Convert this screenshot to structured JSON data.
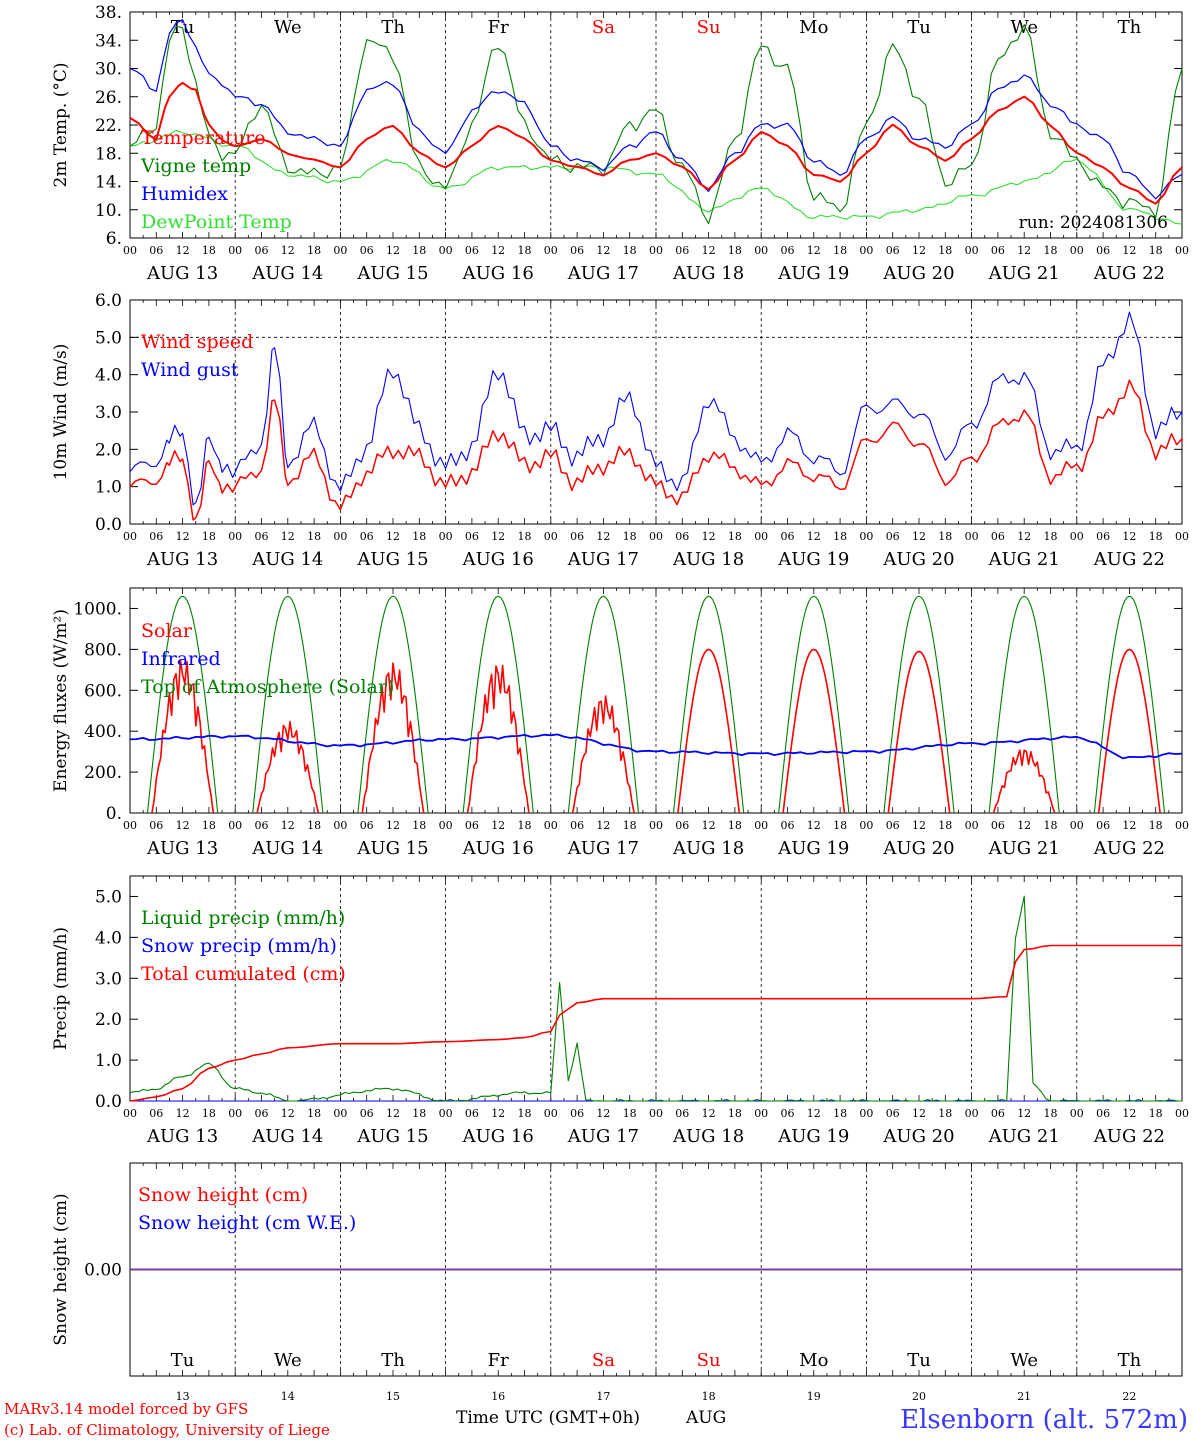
{
  "chart_data": [
    {
      "type": "line",
      "ylabel": "2m Temp. (°C)",
      "ylim": [
        6,
        38
      ],
      "ytick_labels": [
        "6.",
        "10.",
        "14.",
        "18.",
        "22.",
        "26.",
        "30.",
        "34.",
        "38."
      ],
      "run_label": "run: 2024081306",
      "x_unit": "hours since AUG 13 00 UTC",
      "series": [
        {
          "name": "Temperature",
          "color": "#ff0000",
          "x": [
            0,
            6,
            9,
            12,
            15,
            18,
            21,
            24,
            30,
            36,
            42,
            48,
            54,
            60,
            66,
            72,
            78,
            84,
            90,
            96,
            102,
            108,
            114,
            120,
            126,
            132,
            138,
            144,
            150,
            156,
            162,
            168,
            174,
            180,
            186,
            192,
            198,
            204,
            210,
            216,
            222,
            228,
            234,
            240
          ],
          "values": [
            23,
            20,
            26,
            28,
            27,
            22,
            20,
            19,
            20,
            18,
            17,
            16,
            20,
            22,
            18,
            16,
            19,
            22,
            20,
            17,
            16,
            15,
            17,
            18,
            16,
            13,
            17,
            21,
            19,
            15,
            14,
            18,
            22,
            19,
            17,
            20,
            24,
            26,
            22,
            18,
            16,
            13,
            11,
            16
          ]
        },
        {
          "name": "Vigne temp",
          "color": "#008000",
          "x": [
            0,
            6,
            9,
            12,
            15,
            18,
            21,
            24,
            30,
            36,
            42,
            48,
            54,
            60,
            66,
            72,
            78,
            84,
            90,
            96,
            102,
            108,
            114,
            120,
            126,
            132,
            138,
            144,
            150,
            156,
            162,
            168,
            174,
            180,
            186,
            192,
            198,
            204,
            210,
            216,
            222,
            228,
            234,
            240
          ],
          "values": [
            19,
            22,
            34,
            36,
            28,
            20,
            18,
            18,
            25,
            16,
            15,
            16,
            34,
            32,
            16,
            13,
            22,
            34,
            22,
            17,
            16,
            16,
            22,
            24,
            16,
            9,
            20,
            33,
            30,
            12,
            10,
            22,
            33,
            26,
            14,
            16,
            31,
            36,
            21,
            17,
            13,
            11,
            10,
            30
          ]
        },
        {
          "name": "Humidex",
          "color": "#0000ff",
          "x": [
            0,
            6,
            9,
            12,
            15,
            18,
            21,
            24,
            30,
            36,
            42,
            48,
            54,
            60,
            66,
            72,
            78,
            84,
            90,
            96,
            102,
            108,
            114,
            120,
            126,
            132,
            138,
            144,
            150,
            156,
            162,
            168,
            174,
            180,
            186,
            192,
            198,
            204,
            210,
            216,
            222,
            228,
            234,
            240
          ],
          "values": [
            30,
            27,
            35,
            37,
            33,
            29,
            28,
            26,
            25,
            21,
            20,
            19,
            27,
            28,
            21,
            18,
            24,
            27,
            25,
            19,
            17,
            16,
            19,
            21,
            17,
            13,
            18,
            22,
            22,
            17,
            15,
            20,
            23,
            20,
            19,
            22,
            27,
            29,
            25,
            22,
            20,
            15,
            12,
            15
          ]
        },
        {
          "name": "DewPoint Temp",
          "color": "#33dd33",
          "x": [
            0,
            12,
            24,
            36,
            48,
            60,
            72,
            84,
            96,
            108,
            120,
            132,
            144,
            156,
            168,
            180,
            192,
            204,
            216,
            228,
            240
          ],
          "values": [
            19,
            21,
            19,
            15,
            14,
            17,
            13,
            16,
            16,
            16,
            15,
            10,
            13,
            9,
            9,
            10,
            12,
            14,
            17,
            10,
            8
          ]
        }
      ]
    },
    {
      "type": "line",
      "ylabel": "10m Wind (m/s)",
      "ylim": [
        0,
        6
      ],
      "ytick_labels": [
        "0.0",
        "1.0",
        "2.0",
        "3.0",
        "4.0",
        "5.0",
        "6.0"
      ],
      "series": [
        {
          "name": "Wind speed",
          "color": "#ff0000",
          "x": [
            0,
            6,
            9,
            12,
            15,
            18,
            21,
            24,
            30,
            33,
            36,
            42,
            48,
            54,
            60,
            66,
            72,
            78,
            84,
            90,
            96,
            102,
            108,
            114,
            120,
            126,
            132,
            138,
            144,
            150,
            156,
            162,
            168,
            174,
            180,
            186,
            192,
            198,
            204,
            210,
            216,
            222,
            228,
            234,
            240
          ],
          "values": [
            1.0,
            1.2,
            1.6,
            1.8,
            0.1,
            1.5,
            1.1,
            1.0,
            1.5,
            3.3,
            1.2,
            1.8,
            0.4,
            1.4,
            2.0,
            1.8,
            1.0,
            1.4,
            2.5,
            1.6,
            1.8,
            1.1,
            1.6,
            1.9,
            1.0,
            0.7,
            1.9,
            1.5,
            1.0,
            1.6,
            1.3,
            1.0,
            2.2,
            2.6,
            2.2,
            1.2,
            1.7,
            2.6,
            3.0,
            1.3,
            1.5,
            2.8,
            3.7,
            2.0,
            2.2
          ]
        },
        {
          "name": "Wind gust",
          "color": "#0000ff",
          "x": [
            0,
            6,
            9,
            12,
            15,
            18,
            21,
            24,
            30,
            33,
            36,
            42,
            48,
            54,
            60,
            66,
            72,
            78,
            84,
            90,
            96,
            102,
            108,
            114,
            120,
            126,
            132,
            138,
            144,
            150,
            156,
            162,
            168,
            174,
            180,
            186,
            192,
            198,
            204,
            210,
            216,
            222,
            228,
            234,
            240
          ],
          "values": [
            1.4,
            1.7,
            2.2,
            2.5,
            0.5,
            2.1,
            1.7,
            1.4,
            2.2,
            4.7,
            1.7,
            2.6,
            0.9,
            2.1,
            4.2,
            2.5,
            1.5,
            2.1,
            4.2,
            2.4,
            2.5,
            1.8,
            2.4,
            3.4,
            1.5,
            1.1,
            3.4,
            2.3,
            1.6,
            2.4,
            1.8,
            1.4,
            3.1,
            3.2,
            3.0,
            1.9,
            2.6,
            3.8,
            4.0,
            2.0,
            2.0,
            4.2,
            5.5,
            2.6,
            2.9
          ]
        }
      ]
    },
    {
      "type": "line",
      "ylabel": "Energy fluxes (W/m²)",
      "ylim": [
        0,
        1100
      ],
      "ytick_labels": [
        "0.",
        "200.",
        "400.",
        "600.",
        "800.",
        "1000."
      ],
      "series": [
        {
          "name": "Solar",
          "color": "#ff0000",
          "peaks": [
            {
              "day": "AUG 13",
              "value": 760
            },
            {
              "day": "AUG 14",
              "value": 450
            },
            {
              "day": "AUG 15",
              "value": 740
            },
            {
              "day": "AUG 16",
              "value": 740
            },
            {
              "day": "AUG 17",
              "value": 580
            },
            {
              "day": "AUG 18",
              "value": 800
            },
            {
              "day": "AUG 19",
              "value": 800
            },
            {
              "day": "AUG 20",
              "value": 790
            },
            {
              "day": "AUG 21",
              "value": 320
            },
            {
              "day": "AUG 22",
              "value": 800
            }
          ]
        },
        {
          "name": "Infrared",
          "color": "#0000ff",
          "x": [
            0,
            24,
            48,
            72,
            96,
            120,
            144,
            168,
            192,
            216,
            228,
            240
          ],
          "values": [
            360,
            375,
            330,
            360,
            380,
            300,
            290,
            300,
            340,
            370,
            270,
            290
          ]
        },
        {
          "name": "Top of Atmosphere (Solar)",
          "color": "#008000",
          "peak_value": 1060
        }
      ]
    },
    {
      "type": "line",
      "ylabel": "Precip (mm/h)",
      "ylim": [
        0,
        5.5
      ],
      "ytick_labels": [
        "0.0",
        "1.0",
        "2.0",
        "3.0",
        "4.0",
        "5.0"
      ],
      "series": [
        {
          "name": "Liquid precip (mm/h)",
          "color": "#008000",
          "x": [
            0,
            6,
            12,
            18,
            24,
            30,
            36,
            60,
            72,
            90,
            96,
            98,
            100,
            102,
            104,
            108,
            120,
            200,
            202,
            204,
            206,
            210,
            240
          ],
          "values": [
            0.2,
            0.3,
            0.6,
            0.9,
            0.3,
            0.2,
            0.0,
            0.3,
            0.0,
            0.2,
            0.2,
            2.9,
            0.5,
            1.4,
            0.0,
            0.0,
            0.0,
            0.0,
            4.0,
            5.0,
            0.4,
            0.0,
            0.0
          ]
        },
        {
          "name": "Snow precip (mm/h)",
          "color": "#0000ff",
          "x": [
            0,
            240
          ],
          "values": [
            0,
            0
          ]
        },
        {
          "name": "Total cumulated (cm)",
          "color": "#ff0000",
          "x": [
            0,
            6,
            12,
            18,
            24,
            30,
            36,
            48,
            60,
            72,
            84,
            90,
            96,
            98,
            102,
            108,
            120,
            144,
            168,
            192,
            200,
            202,
            204,
            210,
            240
          ],
          "values": [
            0.0,
            0.1,
            0.3,
            0.8,
            1.0,
            1.15,
            1.3,
            1.4,
            1.4,
            1.45,
            1.5,
            1.55,
            1.7,
            2.1,
            2.4,
            2.5,
            2.5,
            2.5,
            2.5,
            2.5,
            2.55,
            3.4,
            3.7,
            3.8,
            3.8
          ]
        }
      ]
    },
    {
      "type": "line",
      "ylabel": "Snow height (cm)",
      "ytick_labels": [
        "0.00"
      ],
      "series": [
        {
          "name": "Snow height (cm)",
          "color": "#ff0000",
          "x": [
            0,
            240
          ],
          "values": [
            0,
            0
          ]
        },
        {
          "name": "Snow height (cm W.E.)",
          "color": "#0000ff",
          "x": [
            0,
            240
          ],
          "values": [
            0,
            0
          ]
        }
      ]
    }
  ],
  "x_axis": {
    "hour_ticks": [
      "00",
      "06",
      "12",
      "18"
    ],
    "date_labels": [
      "AUG 13",
      "AUG 14",
      "AUG 15",
      "AUG 16",
      "AUG 17",
      "AUG 18",
      "AUG 19",
      "AUG 20",
      "AUG 21",
      "AUG 22"
    ],
    "day_labels": [
      "Tu",
      "We",
      "Th",
      "Fr",
      "Sa",
      "Su",
      "Mo",
      "Tu",
      "We",
      "Th"
    ],
    "weekend_days": [
      4,
      5
    ],
    "weekend_color": "#ff0000",
    "day_numbers": [
      "13",
      "14",
      "15",
      "16",
      "17",
      "18",
      "19",
      "20",
      "21",
      "22"
    ],
    "title": "Time UTC (GMT+0h)",
    "month": "AUG"
  },
  "footer": {
    "model_line": "MARv3.14 model forced by GFS",
    "copyright_line": "(c) Lab. of Climatology, University of Liege",
    "station": "Elsenborn (alt. 572m)"
  }
}
